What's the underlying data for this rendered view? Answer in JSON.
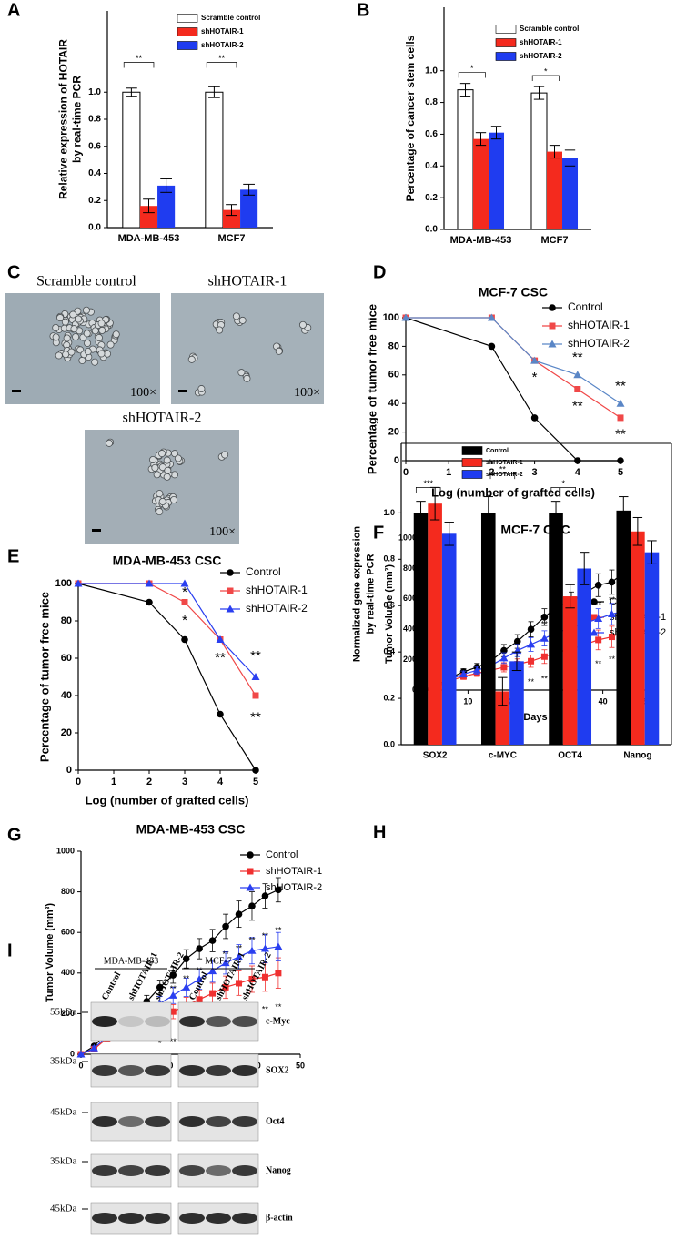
{
  "panel_labels": [
    "A",
    "B",
    "C",
    "D",
    "E",
    "F",
    "G",
    "H",
    "I"
  ],
  "chart_data": [
    {
      "type": "bar",
      "ylabel": [
        "Relative expression of HOTAIR",
        "by real-time PCR"
      ],
      "categories": [
        "MDA-MB-453",
        "MCF7"
      ],
      "series": [
        {
          "name": "Scramble control",
          "color": "#ffffff",
          "values": [
            1.0,
            1.0
          ],
          "errors": [
            0.03,
            0.04
          ]
        },
        {
          "name": "shHOTAIR-1",
          "color": "#f42a1e",
          "values": [
            0.16,
            0.13
          ],
          "errors": [
            0.05,
            0.04
          ]
        },
        {
          "name": "shHOTAIR-2",
          "color": "#1f3cf0",
          "values": [
            0.31,
            0.28
          ],
          "errors": [
            0.05,
            0.04
          ]
        }
      ],
      "ylim": [
        0,
        1.6
      ],
      "yticks": [
        {
          "value": 0,
          "label": "0.0"
        },
        0.2,
        0.4,
        0.6,
        0.8,
        {
          "value": 1,
          "label": "1.0"
        }
      ],
      "annotations": [
        {
          "text": "**",
          "x": -0.12,
          "y": 1.22
        },
        {
          "text": "**",
          "x": 0.88,
          "y": 1.22
        }
      ],
      "frame": "left-bottom"
    },
    {
      "type": "bar",
      "ylabel": [
        "Percentage of cancer stem cells"
      ],
      "categories": [
        "MDA-MB-453",
        "MCF7"
      ],
      "series": [
        {
          "name": "Scramble control",
          "color": "#ffffff",
          "values": [
            0.88,
            0.86
          ],
          "errors": [
            0.04,
            0.04
          ]
        },
        {
          "name": "shHOTAIR-1",
          "color": "#f42a1e",
          "values": [
            0.57,
            0.49
          ],
          "errors": [
            0.04,
            0.04
          ]
        },
        {
          "name": "shHOTAIR-2",
          "color": "#1f3cf0",
          "values": [
            0.61,
            0.45
          ],
          "errors": [
            0.04,
            0.05
          ]
        }
      ],
      "ylim": [
        0,
        1.4
      ],
      "yticks": [
        {
          "value": 0,
          "label": "0.0"
        },
        0.2,
        0.4,
        0.6,
        0.8,
        {
          "value": 1,
          "label": "1.0"
        }
      ],
      "annotations": [
        {
          "text": "*",
          "x": -0.12,
          "y": 0.99
        },
        {
          "text": "*",
          "x": 0.88,
          "y": 0.97
        }
      ],
      "frame": "left-bottom"
    },
    {
      "type": "line",
      "title": "MCF-7 CSC",
      "xlabel": "Log (number of grafted cells)",
      "ylabel": [
        "Percentage of tumor free mice"
      ],
      "x": [
        0,
        2,
        3,
        4,
        5
      ],
      "series": [
        {
          "name": "Control",
          "color": "#000000",
          "marker": "circle",
          "values": [
            100,
            80,
            30,
            0,
            0
          ]
        },
        {
          "name": "shHOTAIR-1",
          "color": "#f04848",
          "marker": "square",
          "values": [
            100,
            100,
            70,
            50,
            30
          ]
        },
        {
          "name": "shHOTAIR-2",
          "color": "#5a86c6",
          "marker": "triangle",
          "values": [
            100,
            100,
            70,
            60,
            40
          ]
        }
      ],
      "xlim": [
        0,
        5
      ],
      "xticks": [
        0,
        1,
        2,
        3,
        4,
        5
      ],
      "ylim": [
        0,
        100
      ],
      "yticks": [
        0,
        20,
        40,
        60,
        80,
        100
      ],
      "annotations": [
        {
          "text": "*",
          "x": 3,
          "y": 58
        },
        {
          "text": "**",
          "x": 4,
          "y": 72
        },
        {
          "text": "**",
          "x": 4,
          "y": 38
        },
        {
          "text": "**",
          "x": 5,
          "y": 52
        },
        {
          "text": "**",
          "x": 5,
          "y": 18
        }
      ],
      "frame": "left-bottom"
    },
    {
      "type": "line",
      "title": "MDA-MB-453 CSC",
      "xlabel": "Log (number of grafted cells)",
      "ylabel": [
        "Percentage of tumor free mice"
      ],
      "x": [
        0,
        2,
        3,
        4,
        5
      ],
      "series": [
        {
          "name": "Control",
          "color": "#000000",
          "marker": "circle",
          "values": [
            100,
            90,
            70,
            30,
            0
          ]
        },
        {
          "name": "shHOTAIR-1",
          "color": "#f04848",
          "marker": "square",
          "values": [
            100,
            100,
            90,
            70,
            40
          ]
        },
        {
          "name": "shHOTAIR-2",
          "color": "#2a3ff0",
          "marker": "triangle",
          "values": [
            100,
            100,
            100,
            70,
            50
          ]
        }
      ],
      "xlim": [
        0,
        5
      ],
      "xticks": [
        0,
        1,
        2,
        3,
        4,
        5
      ],
      "ylim": [
        0,
        100
      ],
      "yticks": [
        0,
        20,
        40,
        60,
        80,
        100
      ],
      "annotations": [
        {
          "text": "*",
          "x": 3,
          "y": 95
        },
        {
          "text": "*",
          "x": 3,
          "y": 80
        },
        {
          "text": "**",
          "x": 4,
          "y": 60
        },
        {
          "text": "**",
          "x": 5,
          "y": 61
        },
        {
          "text": "**",
          "x": 5,
          "y": 28
        }
      ],
      "frame": "left-bottom"
    },
    {
      "type": "line",
      "title": "MCF-7 CSC",
      "xlabel": "Days",
      "ylabel": [
        "Tumor Volume (mm³)"
      ],
      "x": [
        0,
        3,
        6,
        9,
        12,
        15,
        18,
        21,
        24,
        27,
        30,
        33,
        36,
        39,
        42,
        45
      ],
      "series": [
        {
          "name": "Control",
          "color": "#000000",
          "marker": "circle",
          "values": [
            0,
            30,
            80,
            120,
            150,
            190,
            260,
            320,
            400,
            480,
            550,
            580,
            640,
            690,
            710,
            780
          ],
          "errors": [
            0,
            10,
            15,
            20,
            25,
            30,
            40,
            45,
            50,
            55,
            60,
            65,
            70,
            75,
            80,
            70
          ]
        },
        {
          "name": "shHOTAIR-1",
          "color": "#f03030",
          "marker": "square",
          "values": [
            0,
            20,
            60,
            90,
            110,
            130,
            150,
            170,
            190,
            220,
            250,
            270,
            300,
            330,
            350,
            390
          ],
          "errors": [
            0,
            10,
            15,
            20,
            20,
            25,
            30,
            35,
            40,
            45,
            50,
            55,
            60,
            65,
            70,
            75
          ]
        },
        {
          "name": "shHOTAIR-2",
          "color": "#2a3ff0",
          "marker": "triangle",
          "values": [
            0,
            25,
            70,
            105,
            130,
            160,
            210,
            260,
            300,
            340,
            380,
            410,
            440,
            470,
            500,
            520
          ],
          "errors": [
            0,
            10,
            15,
            20,
            25,
            30,
            35,
            40,
            45,
            50,
            55,
            60,
            60,
            65,
            70,
            75
          ]
        }
      ],
      "xlim": [
        0,
        50
      ],
      "xticks": [
        0,
        10,
        20,
        30,
        40,
        50
      ],
      "ylim": [
        0,
        1000
      ],
      "yticks": [
        0,
        200,
        400,
        600,
        800,
        1000
      ],
      "annotations": [
        {
          "text": "**",
          "x": 21,
          "y": 40
        },
        {
          "text": "**",
          "x": 24,
          "y": 50
        },
        {
          "text": "**",
          "x": 27,
          "y": 70
        },
        {
          "text": "**",
          "x": 30,
          "y": 90
        },
        {
          "text": "**",
          "x": 33,
          "y": 110
        },
        {
          "text": "**",
          "x": 36,
          "y": 140
        },
        {
          "text": "**",
          "x": 39,
          "y": 170
        },
        {
          "text": "**",
          "x": 42,
          "y": 200
        },
        {
          "text": "**",
          "x": 45,
          "y": 240
        },
        {
          "text": "**",
          "x": 27,
          "y": 430
        },
        {
          "text": "**",
          "x": 30,
          "y": 470
        },
        {
          "text": "**",
          "x": 33,
          "y": 500
        },
        {
          "text": "**",
          "x": 36,
          "y": 540
        },
        {
          "text": "**",
          "x": 39,
          "y": 560
        },
        {
          "text": "**",
          "x": 42,
          "y": 590
        },
        {
          "text": "**",
          "x": 45,
          "y": 620
        }
      ],
      "frame": "left-bottom"
    },
    {
      "type": "line",
      "title": "MDA-MB-453 CSC",
      "xlabel": "Days",
      "ylabel": [
        "Tumor Volume (mm³)"
      ],
      "x": [
        0,
        3,
        6,
        9,
        12,
        15,
        18,
        21,
        24,
        27,
        30,
        33,
        36,
        39,
        42,
        45
      ],
      "series": [
        {
          "name": "Control",
          "color": "#000000",
          "marker": "circle",
          "values": [
            0,
            40,
            110,
            160,
            200,
            260,
            330,
            390,
            470,
            520,
            560,
            630,
            690,
            730,
            780,
            810
          ],
          "errors": [
            0,
            10,
            15,
            20,
            25,
            30,
            35,
            40,
            45,
            50,
            55,
            60,
            65,
            70,
            60,
            60
          ]
        },
        {
          "name": "shHOTAIR-1",
          "color": "#f03030",
          "marker": "square",
          "values": [
            0,
            25,
            80,
            120,
            140,
            160,
            190,
            210,
            240,
            270,
            300,
            330,
            350,
            370,
            380,
            400
          ],
          "errors": [
            0,
            10,
            15,
            20,
            20,
            25,
            30,
            35,
            40,
            45,
            50,
            55,
            60,
            65,
            70,
            75
          ]
        },
        {
          "name": "shHOTAIR-2",
          "color": "#2a3ff0",
          "marker": "triangle",
          "values": [
            0,
            30,
            90,
            130,
            160,
            200,
            250,
            290,
            330,
            370,
            410,
            450,
            480,
            510,
            520,
            530
          ],
          "errors": [
            0,
            10,
            15,
            20,
            25,
            30,
            35,
            40,
            45,
            50,
            55,
            55,
            60,
            65,
            70,
            70
          ]
        }
      ],
      "xlim": [
        0,
        50
      ],
      "xticks": [
        0,
        10,
        20,
        30,
        40,
        50
      ],
      "ylim": [
        0,
        1000
      ],
      "yticks": [
        0,
        200,
        400,
        600,
        800,
        1000
      ],
      "annotations": [
        {
          "text": "*",
          "x": 18,
          "y": 50
        },
        {
          "text": "**",
          "x": 21,
          "y": 60
        },
        {
          "text": "**",
          "x": 24,
          "y": 80
        },
        {
          "text": "**",
          "x": 27,
          "y": 110
        },
        {
          "text": "**",
          "x": 30,
          "y": 140
        },
        {
          "text": "**",
          "x": 33,
          "y": 170
        },
        {
          "text": "**",
          "x": 36,
          "y": 190
        },
        {
          "text": "**",
          "x": 39,
          "y": 210
        },
        {
          "text": "**",
          "x": 42,
          "y": 220
        },
        {
          "text": "**",
          "x": 45,
          "y": 230
        },
        {
          "text": "**",
          "x": 21,
          "y": 320
        },
        {
          "text": "**",
          "x": 24,
          "y": 370
        },
        {
          "text": "**",
          "x": 27,
          "y": 410
        },
        {
          "text": "**",
          "x": 30,
          "y": 450
        },
        {
          "text": "**",
          "x": 33,
          "y": 490
        },
        {
          "text": "**",
          "x": 36,
          "y": 520
        },
        {
          "text": "**",
          "x": 39,
          "y": 560
        },
        {
          "text": "**",
          "x": 42,
          "y": 580
        },
        {
          "text": "**",
          "x": 45,
          "y": 610
        }
      ],
      "frame": "left-bottom"
    },
    {
      "type": "bar",
      "ylabel": [
        "Normalized gene expression",
        "by real-time PCR"
      ],
      "categories": [
        "SOX2",
        "c-MYC",
        "OCT4",
        "Nanog"
      ],
      "series": [
        {
          "name": "Control",
          "color": "#000000",
          "values": [
            1.0,
            1.0,
            1.0,
            1.01
          ],
          "errors": [
            0.05,
            0.07,
            0.05,
            0.06
          ]
        },
        {
          "name": "shHOTAIR-1",
          "color": "#f42a1e",
          "values": [
            1.04,
            0.23,
            0.64,
            0.92
          ],
          "errors": [
            0.07,
            0.06,
            0.05,
            0.06
          ]
        },
        {
          "name": "shHOTAIR-2",
          "color": "#1f3cf0",
          "values": [
            0.91,
            0.36,
            0.76,
            0.83
          ],
          "errors": [
            0.05,
            0.04,
            0.07,
            0.05
          ]
        }
      ],
      "ylim": [
        0,
        1.3
      ],
      "yticks": [
        {
          "value": 0,
          "label": "0.0"
        },
        0.2,
        0.4,
        0.6,
        0.8,
        {
          "value": 1,
          "label": "1.0"
        }
      ],
      "annotations": [
        {
          "text": "**",
          "x": 1.0,
          "y": 1.17
        },
        {
          "text": "***",
          "x": -0.1,
          "y": 1.11,
          "cat": 1
        },
        {
          "text": "*",
          "x": 1.9,
          "y": 1.11
        }
      ],
      "frame": "box"
    }
  ],
  "micrographs": [
    {
      "caption": "Scramble control",
      "magnification": "100×"
    },
    {
      "caption": "shHOTAIR-1",
      "magnification": "100×"
    },
    {
      "caption": "shHOTAIR-2",
      "magnification": "100×"
    }
  ],
  "western_blot": {
    "groups": [
      "MDA-MB-453",
      "MCF-7"
    ],
    "lanes": [
      "Control",
      "shHOTAIR-1",
      "shHOTAIR-2"
    ],
    "rows": [
      {
        "marker": "55kDa",
        "protein": "c-Myc"
      },
      {
        "marker": "35kDa",
        "protein": "SOX2"
      },
      {
        "marker": "45kDa",
        "protein": "Oct4"
      },
      {
        "marker": "35kDa",
        "protein": "Nanog"
      },
      {
        "marker": "45kDa",
        "protein": "β-actin"
      }
    ]
  }
}
